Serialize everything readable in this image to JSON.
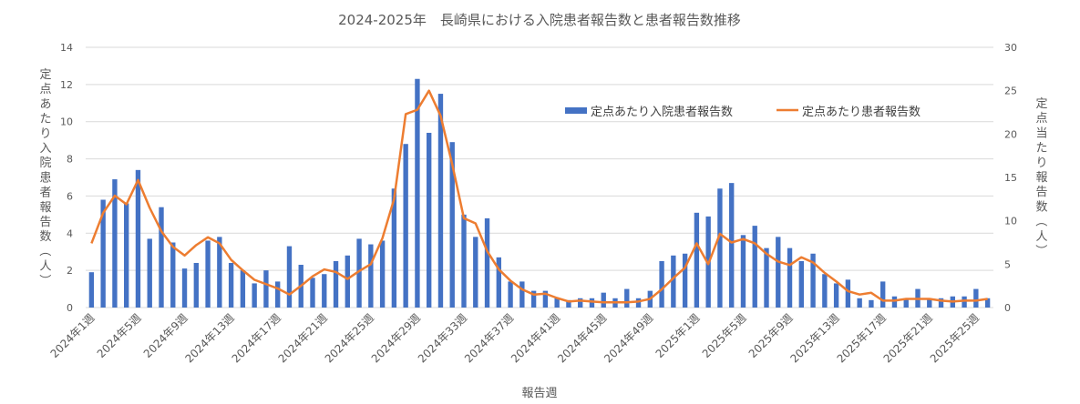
{
  "chart_data": {
    "type": "bar+line",
    "title": "2024-2025年　長崎県における入院患者報告数と患者報告数推移",
    "xlabel": "報告週",
    "ylabel_left": "定点あたり入院患者報告数（人）",
    "ylabel_right": "定点当たり報告数（人）",
    "ylim_left": [
      0,
      14
    ],
    "ylim_right": [
      0,
      30
    ],
    "left_ticks": [
      "0",
      "2",
      "4",
      "6",
      "8",
      "10",
      "12",
      "14"
    ],
    "right_ticks": [
      "0",
      "5",
      "10",
      "15",
      "20",
      "25",
      "30"
    ],
    "legend_position": "top-right",
    "grid": true,
    "categories": [
      "2024年1週",
      "2024年2週",
      "2024年3週",
      "2024年4週",
      "2024年5週",
      "2024年6週",
      "2024年7週",
      "2024年8週",
      "2024年9週",
      "2024年10週",
      "2024年11週",
      "2024年12週",
      "2024年13週",
      "2024年14週",
      "2024年15週",
      "2024年16週",
      "2024年17週",
      "2024年18週",
      "2024年19週",
      "2024年20週",
      "2024年21週",
      "2024年22週",
      "2024年23週",
      "2024年24週",
      "2024年25週",
      "2024年26週",
      "2024年27週",
      "2024年28週",
      "2024年29週",
      "2024年30週",
      "2024年31週",
      "2024年32週",
      "2024年33週",
      "2024年34週",
      "2024年35週",
      "2024年36週",
      "2024年37週",
      "2024年38週",
      "2024年39週",
      "2024年40週",
      "2024年41週",
      "2024年42週",
      "2024年43週",
      "2024年44週",
      "2024年45週",
      "2024年46週",
      "2024年47週",
      "2024年48週",
      "2024年49週",
      "2024年50週",
      "2024年51週",
      "2024年52週",
      "2025年1週",
      "2025年2週",
      "2025年3週",
      "2025年4週",
      "2025年5週",
      "2025年6週",
      "2025年7週",
      "2025年8週",
      "2025年9週",
      "2025年10週",
      "2025年11週",
      "2025年12週",
      "2025年13週",
      "2025年14週",
      "2025年15週",
      "2025年16週",
      "2025年17週",
      "2025年18週",
      "2025年19週",
      "2025年20週",
      "2025年21週",
      "2025年22週",
      "2025年23週",
      "2025年24週",
      "2025年25週",
      "2025年26週"
    ],
    "x_tick_labels": [
      "2024年1週",
      "2024年5週",
      "2024年9週",
      "2024年13週",
      "2024年17週",
      "2024年21週",
      "2024年25週",
      "2024年29週",
      "2024年33週",
      "2024年37週",
      "2024年41週",
      "2024年45週",
      "2024年49週",
      "2025年1週",
      "2025年5週",
      "2025年9週",
      "2025年13週",
      "2025年17週",
      "2025年21週",
      "2025年25週"
    ],
    "series": [
      {
        "name": "定点あたり入院患者報告数",
        "type": "bar",
        "axis": "left",
        "color": "#4472c4",
        "values": [
          1.9,
          5.8,
          6.9,
          5.6,
          7.4,
          3.7,
          5.4,
          3.5,
          2.1,
          2.4,
          3.6,
          3.8,
          2.4,
          2.0,
          1.3,
          2.0,
          1.4,
          3.3,
          2.3,
          1.6,
          1.8,
          2.5,
          2.8,
          3.7,
          3.4,
          3.6,
          6.4,
          8.8,
          12.3,
          9.4,
          11.5,
          8.9,
          5.0,
          3.8,
          4.8,
          2.7,
          1.4,
          1.4,
          0.9,
          0.9,
          0.5,
          0.4,
          0.5,
          0.5,
          0.8,
          0.5,
          1.0,
          0.5,
          0.9,
          2.5,
          2.8,
          2.9,
          5.1,
          4.9,
          6.4,
          6.7,
          3.9,
          4.4,
          3.2,
          3.8,
          3.2,
          2.5,
          2.9,
          1.8,
          1.3,
          1.5,
          0.5,
          0.4,
          1.4,
          0.6,
          0.5,
          1.0,
          0.5,
          0.5,
          0.6,
          0.6,
          1.0,
          0.5
        ]
      },
      {
        "name": "定点あたり患者報告数",
        "type": "line",
        "axis": "right",
        "color": "#ed7d31",
        "values": [
          7.4,
          10.9,
          12.9,
          11.9,
          14.7,
          11.5,
          8.8,
          7.0,
          6.0,
          7.2,
          8.1,
          7.4,
          5.5,
          4.3,
          3.2,
          2.7,
          2.2,
          1.5,
          2.5,
          3.6,
          4.4,
          4.1,
          3.3,
          4.2,
          5.0,
          8.0,
          12.5,
          22.3,
          22.8,
          25.0,
          22.1,
          16.5,
          10.3,
          9.7,
          6.5,
          4.4,
          3.1,
          2.1,
          1.5,
          1.6,
          1.1,
          0.7,
          0.8,
          0.7,
          0.6,
          0.6,
          0.6,
          0.7,
          1.0,
          2.1,
          3.4,
          4.6,
          7.4,
          5.0,
          8.5,
          7.5,
          7.9,
          7.4,
          6.2,
          5.3,
          4.9,
          5.8,
          5.2,
          4.0,
          3.0,
          1.9,
          1.5,
          1.7,
          0.8,
          0.8,
          1.0,
          1.0,
          1.0,
          0.8,
          0.7,
          0.8,
          0.8,
          1.0
        ]
      }
    ]
  }
}
